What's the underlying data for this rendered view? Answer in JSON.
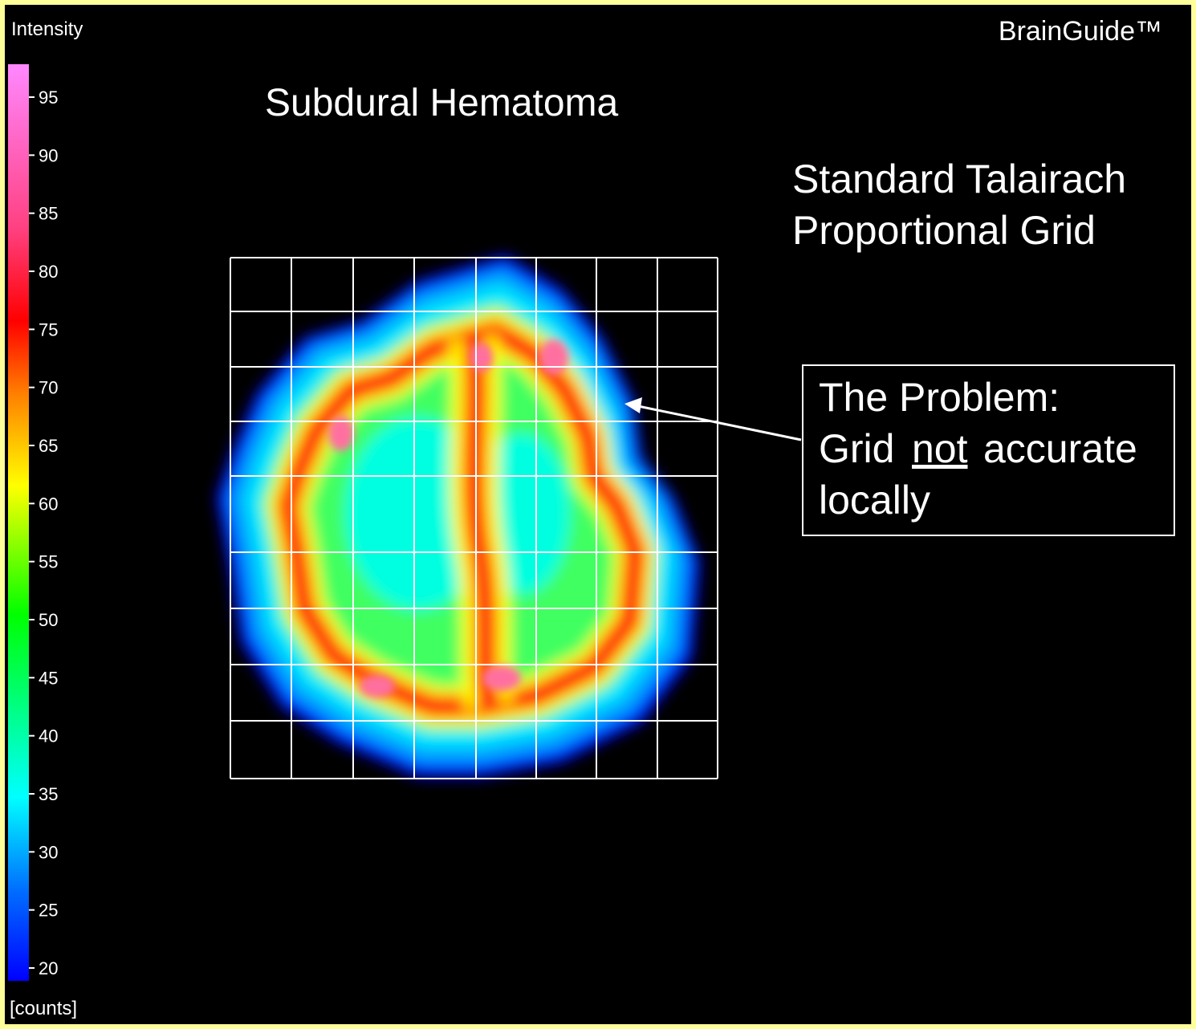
{
  "colorbar": {
    "title": "Intensity",
    "unit": "[counts]",
    "ticks": [
      95,
      90,
      85,
      80,
      75,
      70,
      65,
      60,
      55,
      50,
      45,
      40,
      35,
      30,
      25,
      20
    ]
  },
  "brand": "BrainGuide™",
  "title": "Subdural Hematoma",
  "grid_label": [
    "Standard Talairach",
    "Proportional Grid"
  ],
  "callout": {
    "line1": "The Problem:",
    "line2": [
      "Grid",
      "not",
      "accurate"
    ],
    "line3": "locally"
  }
}
